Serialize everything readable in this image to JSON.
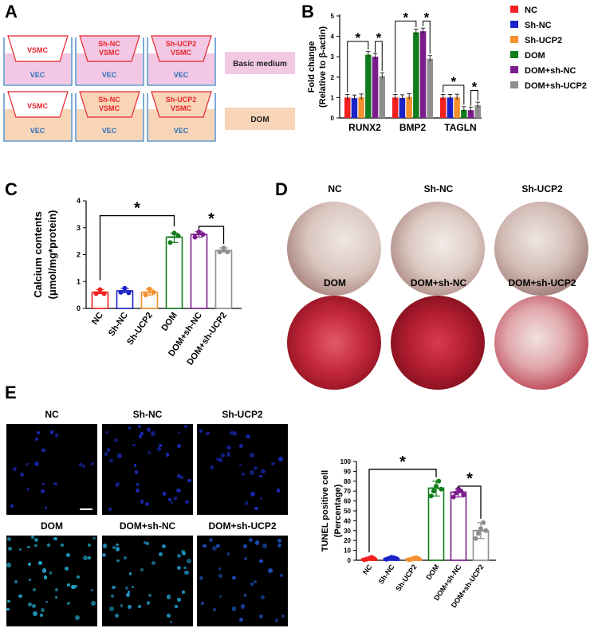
{
  "panel_letters": {
    "a": "A",
    "b": "B",
    "c": "C",
    "d": "D",
    "e": "E"
  },
  "panelA": {
    "wells_row1": [
      {
        "top": "VSMC",
        "sub": ""
      },
      {
        "top": "Sh-NC",
        "sub": "VSMC"
      },
      {
        "top": "Sh-UCP2",
        "sub": "VSMC"
      }
    ],
    "wells_row2": [
      {
        "top": "VSMC",
        "sub": ""
      },
      {
        "top": "Sh-NC",
        "sub": "VSMC"
      },
      {
        "top": "Sh-UCP2",
        "sub": "VSMC"
      }
    ],
    "bottom_label": "VEC",
    "row1_medium": "Basic medium",
    "row2_medium": "DOM",
    "colors": {
      "basic": "#f2c8e4",
      "dom": "#f9d5b8",
      "insert_text": "#e8232a",
      "vec_text": "#2a6fbd"
    }
  },
  "groups": [
    "NC",
    "Sh-NC",
    "Sh-UCP2",
    "DOM",
    "DOM+sh-NC",
    "DOM+sh-UCP2"
  ],
  "colors": [
    "#f2201f",
    "#1c22c9",
    "#f68f2d",
    "#127d1c",
    "#7b1d8c",
    "#8e8e8e"
  ],
  "chart_data": [
    {
      "id": "B",
      "type": "bar",
      "ylabel": "Fold change",
      "ylabel2": "(Relative to β-actin)",
      "categories": [
        "RUNX2",
        "BMP2",
        "TAGLN"
      ],
      "ylim": [
        0,
        5
      ],
      "yticks": [
        "0",
        "1",
        "2",
        "3",
        "4",
        "5"
      ],
      "series": [
        {
          "name": "NC",
          "values": [
            1.0,
            1.0,
            1.0
          ]
        },
        {
          "name": "Sh-NC",
          "values": [
            0.97,
            0.98,
            1.0
          ]
        },
        {
          "name": "Sh-UCP2",
          "values": [
            1.02,
            1.03,
            1.01
          ]
        },
        {
          "name": "DOM",
          "values": [
            3.1,
            4.2,
            0.4
          ]
        },
        {
          "name": "DOM+sh-NC",
          "values": [
            3.0,
            4.25,
            0.38
          ]
        },
        {
          "name": "DOM+sh-UCP2",
          "values": [
            2.05,
            2.9,
            0.62
          ]
        }
      ],
      "significance": "*"
    },
    {
      "id": "C",
      "type": "bar",
      "ylabel": "Calcium contents",
      "ylabel2": "(μmol/mg*protein)",
      "categories": [
        "NC",
        "Sh-NC",
        "Sh-UCP2",
        "DOM",
        "DOM+sh-NC",
        "DOM+sh-UCP2"
      ],
      "ylim": [
        0,
        4
      ],
      "yticks": [
        "0",
        "1",
        "2",
        "3",
        "4"
      ],
      "values": [
        0.6,
        0.65,
        0.6,
        2.65,
        2.75,
        2.15
      ],
      "points": [
        [
          0.55,
          0.7,
          0.55
        ],
        [
          0.6,
          0.75,
          0.58
        ],
        [
          0.5,
          0.72,
          0.6
        ],
        [
          2.45,
          2.8,
          2.7
        ],
        [
          2.65,
          2.85,
          2.75
        ],
        [
          2.1,
          2.25,
          2.1
        ]
      ],
      "significance": "*"
    },
    {
      "id": "E",
      "type": "bar",
      "ylabel": "TUNEL positive cell",
      "ylabel2": "(Percentage)",
      "categories": [
        "NC",
        "Sh-NC",
        "Sh-UCP2",
        "DOM",
        "DOM+sh-NC",
        "DOM+sh-UCP2"
      ],
      "ylim": [
        0,
        100
      ],
      "yticks": [
        "0",
        "10",
        "20",
        "30",
        "40",
        "50",
        "60",
        "70",
        "80",
        "90",
        "100"
      ],
      "values": [
        1.5,
        2.0,
        1.5,
        73,
        69,
        30
      ],
      "points": [
        [
          0.5,
          1,
          2,
          3,
          1.5
        ],
        [
          1,
          2,
          3,
          2.5,
          1.5
        ],
        [
          0.5,
          1,
          2,
          2.5,
          1.5
        ],
        [
          65,
          70,
          75,
          80,
          72
        ],
        [
          64,
          68,
          72,
          70,
          66
        ],
        [
          22,
          27,
          32,
          38,
          30
        ]
      ],
      "significance": "*"
    }
  ],
  "panelD": {
    "labels": [
      "NC",
      "Sh-NC",
      "Sh-UCP2",
      "DOM",
      "DOM+sh-NC",
      "DOM+sh-UCP2"
    ]
  },
  "panelE": {
    "labels": [
      "NC",
      "Sh-NC",
      "Sh-UCP2",
      "DOM",
      "DOM+sh-NC",
      "DOM+sh-UCP2"
    ]
  }
}
